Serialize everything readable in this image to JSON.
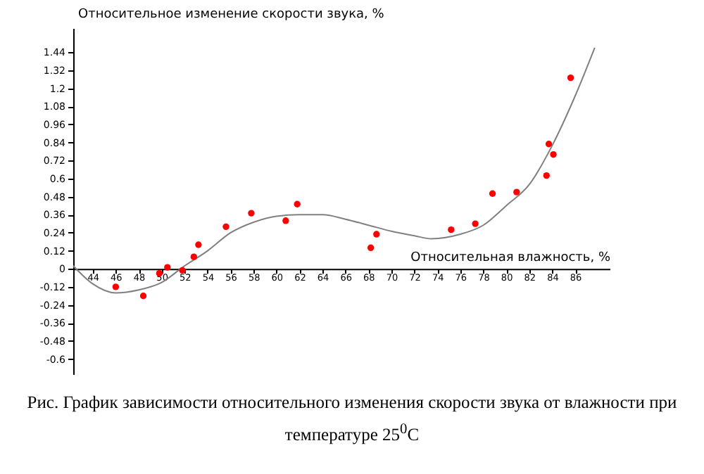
{
  "chart_data": {
    "type": "scatter",
    "title": "Рис. График зависимости относительного изменения скорости звука от влажности при температуре 25$^{0}$C",
    "xlabel": "Относительная влажность, %",
    "ylabel": "Относительное изменение скорости звука, %",
    "xlim": [
      42.3,
      89
    ],
    "ylim": [
      -0.7,
      1.6
    ],
    "xticks": [
      44,
      46,
      48,
      50,
      52,
      54,
      56,
      58,
      60,
      62,
      64,
      66,
      68,
      70,
      72,
      74,
      76,
      78,
      80,
      82,
      84,
      86
    ],
    "yticks": [
      -0.6,
      -0.48,
      -0.36,
      -0.24,
      -0.12,
      0,
      0.12,
      0.24,
      0.36,
      0.48,
      0.6,
      0.72,
      0.84,
      0.96,
      1.08,
      1.2,
      1.32,
      1.44
    ],
    "grid": false,
    "series": [
      {
        "type": "line",
        "color": "#808080",
        "marker": "none",
        "x": [
          42.3,
          44,
          46,
          48,
          50,
          52,
          54,
          56,
          58,
          60,
          62,
          64,
          66,
          68,
          70,
          72,
          73.5,
          76,
          78,
          80,
          82,
          84,
          86,
          87.7
        ],
        "values": [
          0.02,
          -0.1,
          -0.16,
          -0.14,
          -0.09,
          0.02,
          0.12,
          0.24,
          0.31,
          0.35,
          0.36,
          0.36,
          0.33,
          0.29,
          0.25,
          0.22,
          0.2,
          0.23,
          0.29,
          0.42,
          0.56,
          0.82,
          1.15,
          1.47
        ]
      },
      {
        "type": "scatter",
        "color": "#ff0000",
        "marker": "circle",
        "x": [
          46.0,
          48.4,
          49.8,
          50.5,
          51.8,
          52.8,
          53.2,
          55.6,
          57.8,
          60.8,
          61.8,
          68.2,
          68.7,
          75.2,
          77.3,
          78.8,
          80.9,
          83.5,
          83.7,
          84.1,
          85.6
        ],
        "values": [
          -0.12,
          -0.18,
          -0.03,
          0.01,
          -0.01,
          0.08,
          0.16,
          0.28,
          0.37,
          0.32,
          0.43,
          0.14,
          0.23,
          0.26,
          0.3,
          0.5,
          0.51,
          0.62,
          0.83,
          0.76,
          1.27
        ]
      }
    ]
  }
}
